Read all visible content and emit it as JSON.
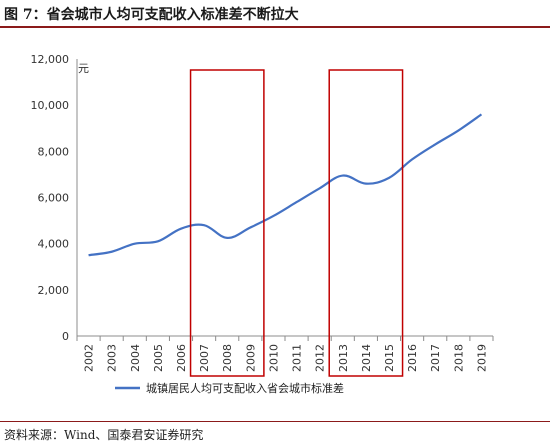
{
  "title": "图 7：省会城市人均可支配收入标准差不断拉大",
  "source": "资料来源：Wind、国泰君安证券研究",
  "colors": {
    "line": "#4472c4",
    "highlight": "#c00000",
    "rule": "#8b1a1a"
  },
  "chart_data": {
    "type": "line",
    "ylabel": "元",
    "ylim": [
      0,
      12000
    ],
    "yticks": [
      0,
      2000,
      4000,
      6000,
      8000,
      10000,
      12000
    ],
    "ytick_labels": [
      "0",
      "2,000",
      "4,000",
      "6,000",
      "8,000",
      "10,000",
      "12,000"
    ],
    "categories": [
      "2002",
      "2003",
      "2004",
      "2005",
      "2006",
      "2007",
      "2008",
      "2009",
      "2010",
      "2011",
      "2012",
      "2013",
      "2014",
      "2015",
      "2016",
      "2017",
      "2018",
      "2019"
    ],
    "series": [
      {
        "name": "城镇居民人均可支配收入省会城市标准差",
        "values": [
          3500,
          3650,
          4000,
          4100,
          4650,
          4800,
          4250,
          4700,
          5200,
          5800,
          6400,
          6950,
          6600,
          6850,
          7650,
          8300,
          8900,
          9600
        ]
      }
    ],
    "highlight_ranges": [
      {
        "start": "2007",
        "end": "2009"
      },
      {
        "start": "2013",
        "end": "2015"
      }
    ],
    "grid": false,
    "legend": "bottom-center"
  }
}
